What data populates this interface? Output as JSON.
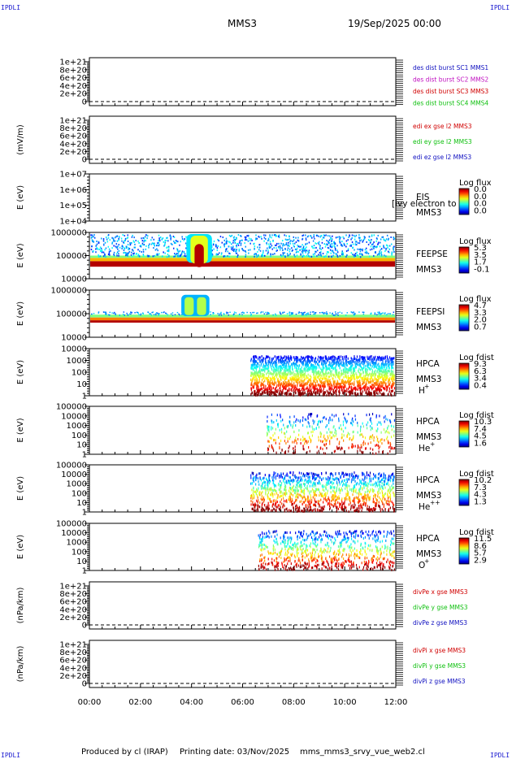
{
  "corner_tag": "IPDLI",
  "header": {
    "spacecraft": "MMS3",
    "date": "19/Sep/2025 00:00"
  },
  "footer": {
    "produced_by": "Produced by cl (IRAP)",
    "printing": "Printing date: 03/Nov/2025",
    "file": "mms_mms3_srvy_vue_web2.cl"
  },
  "colors": {
    "black": "#000000",
    "red": "#d00000",
    "green": "#10c010",
    "blue": "#1010c0",
    "magenta": "#c010c0"
  },
  "chart_data": [
    {
      "type": "line",
      "name": "desdist",
      "ylabel": "",
      "yticks": [
        "1e+21",
        "8e+20",
        "6e+20",
        "4e+20",
        "2e+20",
        "0"
      ],
      "legend": [
        {
          "text": "des dist burst SC1 MMS1",
          "color": "#1010c0"
        },
        {
          "text": "des dist burst SC2 MMS2",
          "color": "#c010c0"
        },
        {
          "text": "des dist burst SC3 MMS3",
          "color": "#d00000"
        },
        {
          "text": "des dist burst SC4 MMS4",
          "color": "#10c010"
        }
      ],
      "series": []
    },
    {
      "type": "line",
      "name": "edi",
      "ylabel": "(mV/m)",
      "yticks": [
        "1e+21",
        "8e+20",
        "6e+20",
        "4e+20",
        "2e+20",
        "0"
      ],
      "legend": [
        {
          "text": "edi ex gse l2 MMS3",
          "color": "#d00000"
        },
        {
          "text": "edi ey gse l2 MMS3",
          "color": "#10c010"
        },
        {
          "text": "edi ez gse l2 MMS3",
          "color": "#1010c0"
        }
      ],
      "series": []
    },
    {
      "type": "heatmap",
      "name": "eis",
      "ylabel": "E (eV)",
      "yticks": [
        "1e+07",
        "1e+06",
        "1e+05",
        "1e+04"
      ],
      "labels": [
        "EIS",
        "MMS3"
      ],
      "overlay": "[ivy electron to",
      "cbar_title": "Log flux",
      "cbar_ticks": [
        "0.0",
        "0.0",
        "0.0",
        "0.0"
      ],
      "density": 0
    },
    {
      "type": "heatmap",
      "name": "feepse",
      "ylabel": "E (eV)",
      "yticks": [
        "1000000",
        "100000",
        "10000"
      ],
      "labels": [
        "FEEPSE",
        "MMS3"
      ],
      "cbar_title": "Log flux",
      "cbar_ticks": [
        "5.3",
        "3.5",
        "1.7",
        "-0.1"
      ],
      "density": 1,
      "burst_hours": [
        3.8,
        4.8
      ]
    },
    {
      "type": "heatmap",
      "name": "feepsi",
      "ylabel": "E (eV)",
      "yticks": [
        "1000000",
        "100000",
        "10000"
      ],
      "labels": [
        "FEEPSI",
        "MMS3"
      ],
      "cbar_title": "Log flux",
      "cbar_ticks": [
        "4.7",
        "3.3",
        "2.0",
        "0.7"
      ],
      "density": 0.3,
      "burst_hours": [
        3.6,
        4.7
      ]
    },
    {
      "type": "heatmap",
      "name": "hpca_h",
      "ylabel": "E (eV)",
      "yticks": [
        "10000",
        "1000",
        "100",
        "10",
        "1"
      ],
      "labels": [
        "HPCA",
        "MMS3"
      ],
      "species": "H",
      "charge": "+",
      "cbar_title": "Log fdist",
      "cbar_ticks": [
        "9.3",
        "6.3",
        "3.4",
        "0.4"
      ],
      "density": 0.9,
      "start_hour": 6.3
    },
    {
      "type": "heatmap",
      "name": "hpca_he",
      "ylabel": "E (eV)",
      "yticks": [
        "100000",
        "10000",
        "1000",
        "100",
        "10",
        "1"
      ],
      "labels": [
        "HPCA",
        "MMS3"
      ],
      "species": "He",
      "charge": "+",
      "cbar_title": "Log fdist",
      "cbar_ticks": [
        "10.3",
        "7.4",
        "4.5",
        "1.6"
      ],
      "density": 0.25,
      "start_hour": 6.9
    },
    {
      "type": "heatmap",
      "name": "hpca_he2",
      "ylabel": "E (eV)",
      "yticks": [
        "100000",
        "10000",
        "1000",
        "100",
        "10",
        "1"
      ],
      "labels": [
        "HPCA",
        "MMS3"
      ],
      "species": "He",
      "charge": "++",
      "cbar_title": "Log fdist",
      "cbar_ticks": [
        "10.2",
        "7.3",
        "4.3",
        "1.3"
      ],
      "density": 0.7,
      "start_hour": 6.3
    },
    {
      "type": "heatmap",
      "name": "hpca_o",
      "ylabel": "E (eV)",
      "yticks": [
        "100000",
        "10000",
        "1000",
        "100",
        "10",
        "1"
      ],
      "labels": [
        "HPCA",
        "MMS3"
      ],
      "species": "O",
      "charge": "+",
      "cbar_title": "Log fdist",
      "cbar_ticks": [
        "11.5",
        "8.6",
        "5.7",
        "2.9"
      ],
      "density": 0.45,
      "start_hour": 6.6
    },
    {
      "type": "line",
      "name": "divpe",
      "ylabel": "(nPa/km)",
      "yticks": [
        "1e+21",
        "8e+20",
        "6e+20",
        "4e+20",
        "2e+20",
        "0"
      ],
      "legend": [
        {
          "text": "divPe x gse MMS3",
          "color": "#d00000"
        },
        {
          "text": "divPe y gse MMS3",
          "color": "#10c010"
        },
        {
          "text": "divPe z gse MMS3",
          "color": "#1010c0"
        }
      ],
      "series": []
    },
    {
      "type": "line",
      "name": "divpi",
      "ylabel": "(nPa/km)",
      "yticks": [
        "1e+21",
        "8e+20",
        "6e+20",
        "4e+20",
        "2e+20",
        "0"
      ],
      "legend": [
        {
          "text": "divPi x gse MMS3",
          "color": "#d00000"
        },
        {
          "text": "divPi y gse MMS3",
          "color": "#10c010"
        },
        {
          "text": "divPi z gse MMS3",
          "color": "#1010c0"
        }
      ],
      "series": []
    }
  ],
  "x_axis": {
    "ticks": [
      "00:00",
      "02:00",
      "04:00",
      "06:00",
      "08:00",
      "10:00",
      "12:00"
    ],
    "range_hours": [
      0,
      12
    ]
  }
}
